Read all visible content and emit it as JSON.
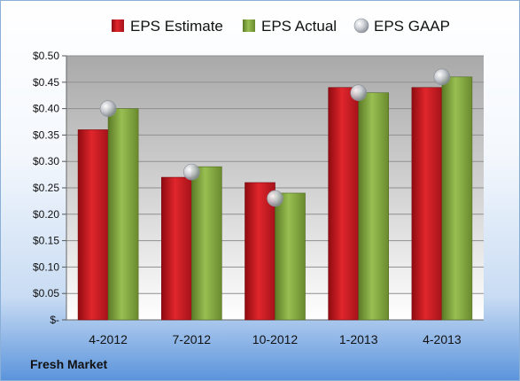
{
  "company": "Fresh Market",
  "colors": {
    "estimate": "#c0161e",
    "actual": "#7ea23c",
    "gaap": "#b8bcc4"
  },
  "chart_data": {
    "type": "bar",
    "categories": [
      "4-2012",
      "7-2012",
      "10-2012",
      "1-2013",
      "4-2013"
    ],
    "series": [
      {
        "name": "EPS Estimate",
        "type": "bar",
        "values": [
          0.36,
          0.27,
          0.26,
          0.44,
          0.44
        ]
      },
      {
        "name": "EPS Actual",
        "type": "bar",
        "values": [
          0.4,
          0.29,
          0.24,
          0.43,
          0.46
        ]
      },
      {
        "name": "EPS GAAP",
        "type": "scatter",
        "values": [
          0.4,
          0.28,
          0.23,
          0.43,
          0.46
        ]
      }
    ],
    "yticks": [
      "$-",
      "$0.05",
      "$0.10",
      "$0.15",
      "$0.20",
      "$0.25",
      "$0.30",
      "$0.35",
      "$0.40",
      "$0.45",
      "$0.50"
    ],
    "ylim": [
      0,
      0.5
    ],
    "grid": true,
    "legend": "top"
  }
}
